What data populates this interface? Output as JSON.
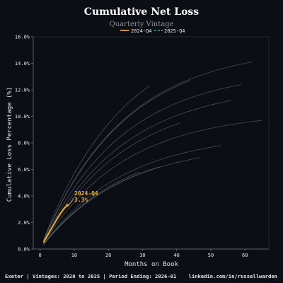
{
  "header": {
    "title": "Cumulative Net Loss",
    "subtitle": "Quarterly Vintage"
  },
  "footer": {
    "left": "Exeter | Vintages: 2020 to 2025 | Period Ending: 2026-01",
    "right": "linkedin.com/in/russellwarden"
  },
  "colors": {
    "background": "#0b0e14",
    "highlight": "#f5b81c",
    "comparison": "#3fa7a0",
    "other_vintages": "#5c626b",
    "axis": "#6b7078",
    "text": "#e6e6e6"
  },
  "chart_data": {
    "type": "line",
    "title": "Cumulative Net Loss",
    "subtitle": "Quarterly Vintage",
    "xlabel": "Months on Book",
    "ylabel": "Cumulative Loss Percentage (%)",
    "xlim": [
      -2,
      67
    ],
    "ylim": [
      0,
      16
    ],
    "x_ticks": [
      0,
      10,
      20,
      30,
      40,
      50,
      60
    ],
    "y_ticks": [
      0,
      2,
      4,
      6,
      8,
      10,
      12,
      14,
      16
    ],
    "y_tick_labels": [
      "0.0%",
      "2.0%",
      "4.0%",
      "6.0%",
      "8.0%",
      "10.0%",
      "12.0%",
      "14.0%",
      "16.0%"
    ],
    "grid": false,
    "legend": {
      "placement": "top-center",
      "entries": [
        "2024-Q4",
        "2025-Q4"
      ]
    },
    "annotation": {
      "series": "2024-Q4",
      "x": 8,
      "y": 3.3,
      "label_line1": "2024-Q4",
      "label_line2": "3.3%"
    },
    "background_series": [
      {
        "final_x": 62,
        "final_y": 14.1
      },
      {
        "final_x": 44,
        "final_y": 12.7
      },
      {
        "final_x": 59,
        "final_y": 12.4
      },
      {
        "final_x": 56,
        "final_y": 11.2
      },
      {
        "final_x": 65,
        "final_y": 9.7
      },
      {
        "final_x": 53,
        "final_y": 7.8
      },
      {
        "final_x": 47,
        "final_y": 6.9
      },
      {
        "final_x": 35,
        "final_y": 6.2
      },
      {
        "final_x": 41,
        "final_y": 9.5
      },
      {
        "final_x": 32,
        "final_y": 12.3
      },
      {
        "final_x": 29,
        "final_y": 5.8
      }
    ],
    "series": [
      {
        "name": "2024-Q4",
        "x": [
          1,
          2,
          3,
          4,
          5,
          6,
          7,
          8
        ],
        "values": [
          0.5,
          0.95,
          1.4,
          1.85,
          2.3,
          2.7,
          3.05,
          3.3
        ]
      },
      {
        "name": "2025-Q4",
        "x": [],
        "values": []
      }
    ]
  }
}
